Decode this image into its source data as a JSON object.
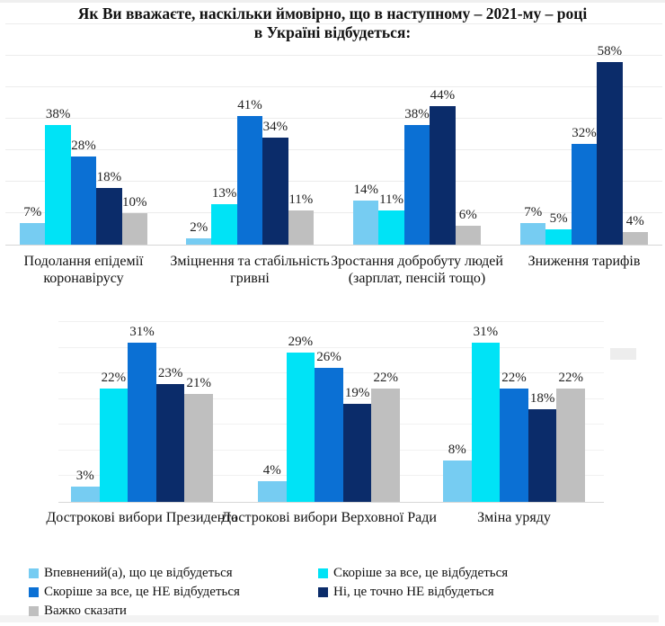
{
  "title": {
    "line1": "Як Ви вважаєте, наскільки ймовірно, що в наступному – 2021-му – році",
    "line2": "в Україні відбудеться:"
  },
  "colors": {
    "sure_yes": "#76CCF2",
    "likely_yes": "#00E3F6",
    "likely_no": "#0B70D4",
    "sure_no": "#0B2C6A",
    "hard_to_say": "#BFBFBF",
    "gridline_top": "#ECECEC",
    "gridline_bottom": "#F1F1F1",
    "axis": "#D7D7D7"
  },
  "legend": {
    "position": "bottom",
    "columns": [
      [
        0,
        2,
        4
      ],
      [
        1,
        3
      ]
    ]
  },
  "chart_data": [
    {
      "type": "bar",
      "row": "top",
      "unit": "%",
      "ylim": [
        0,
        70
      ],
      "grid_step": 10,
      "grid_on": true,
      "categories": [
        "Подолання епідемії коронавірусу",
        "Зміцнення та стабільність гривні",
        "Зростання добробуту людей (зарплат, пенсій тощо)",
        "Зниження тарифів"
      ],
      "series": [
        {
          "name": "Впевнений(а), що це відбудеться",
          "color": "#76CCF2",
          "values": [
            7,
            2,
            14,
            7
          ]
        },
        {
          "name": "Скоріше за все, це відбудеться",
          "color": "#00E3F6",
          "values": [
            38,
            13,
            11,
            5
          ]
        },
        {
          "name": "Скоріше за все,  це НЕ відбудеться",
          "color": "#0B70D4",
          "values": [
            28,
            41,
            38,
            32
          ]
        },
        {
          "name": "Ні, це точно НЕ відбудеться",
          "color": "#0B2C6A",
          "values": [
            18,
            34,
            44,
            58
          ]
        },
        {
          "name": "Важко сказати",
          "color": "#BFBFBF",
          "values": [
            10,
            11,
            6,
            4
          ]
        }
      ]
    },
    {
      "type": "bar",
      "row": "bottom",
      "unit": "%",
      "ylim": [
        0,
        35
      ],
      "grid_step": 5,
      "grid_on": true,
      "categories": [
        "Дострокові вибори  Президента",
        "Дострокові вибори Верховної Ради",
        "Зміна уряду"
      ],
      "series": [
        {
          "name": "Впевнений(а), що це відбудеться",
          "color": "#76CCF2",
          "values": [
            3,
            4,
            8
          ]
        },
        {
          "name": "Скоріше за все, це відбудеться",
          "color": "#00E3F6",
          "values": [
            22,
            29,
            31
          ]
        },
        {
          "name": "Скоріше за все,  це НЕ відбудеться",
          "color": "#0B70D4",
          "values": [
            31,
            26,
            22
          ]
        },
        {
          "name": "Ні, це точно НЕ відбудеться",
          "color": "#0B2C6A",
          "values": [
            23,
            19,
            18
          ]
        },
        {
          "name": "Важко сказати",
          "color": "#BFBFBF",
          "values": [
            21,
            22,
            22
          ]
        }
      ]
    }
  ]
}
